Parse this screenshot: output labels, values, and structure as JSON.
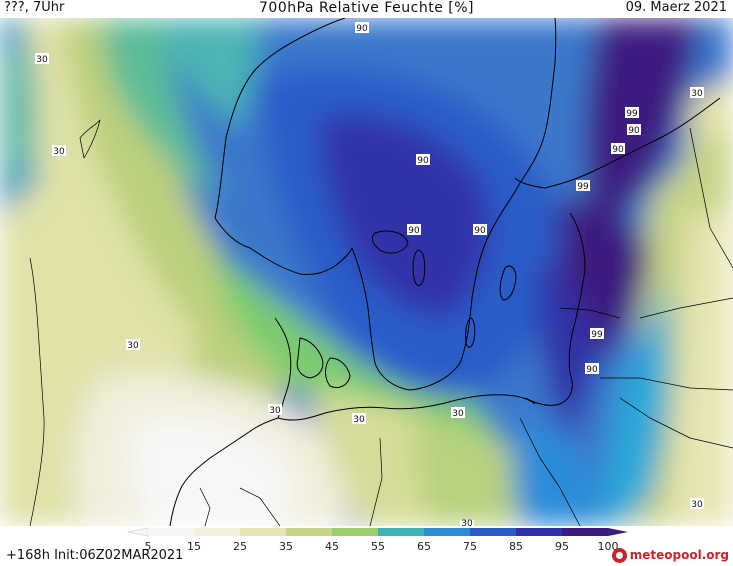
{
  "header": {
    "left": "???, 7Uhr",
    "title": "700hPa Relative Feuchte [%]",
    "right": "09. Maerz 2021"
  },
  "footer": {
    "run_info": "+168h  Init:06Z02MAR2021",
    "brand": "meteopool.org"
  },
  "legend": {
    "ticks": [
      "5",
      "15",
      "25",
      "35",
      "45",
      "55",
      "65",
      "75",
      "85",
      "95",
      "100"
    ],
    "colors": [
      "#f6f6f6",
      "#f2efdc",
      "#e6e6b4",
      "#c8d488",
      "#9ccc6c",
      "#3cb4b4",
      "#2c8cd8",
      "#2a5cc8",
      "#3232a8",
      "#3c1c80"
    ]
  },
  "contour_labels": [
    "90",
    "30",
    "30",
    "90",
    "90",
    "90",
    "99",
    "90",
    "90",
    "99",
    "30",
    "30",
    "30",
    "30",
    "99",
    "90",
    "30",
    "30",
    "30"
  ],
  "chart_data": {
    "type": "heatmap",
    "title": "700hPa Relative Feuchte [%]",
    "variable": "Relative humidity at 700 hPa",
    "unit": "%",
    "valid_date": "09. Maerz 2021",
    "forecast_hour": "+168h",
    "init": "06Z02MAR2021",
    "colorbar_ticks": [
      5,
      15,
      25,
      35,
      45,
      55,
      65,
      75,
      85,
      95,
      100
    ],
    "contour_levels_labeled": [
      30,
      90,
      99
    ]
  }
}
